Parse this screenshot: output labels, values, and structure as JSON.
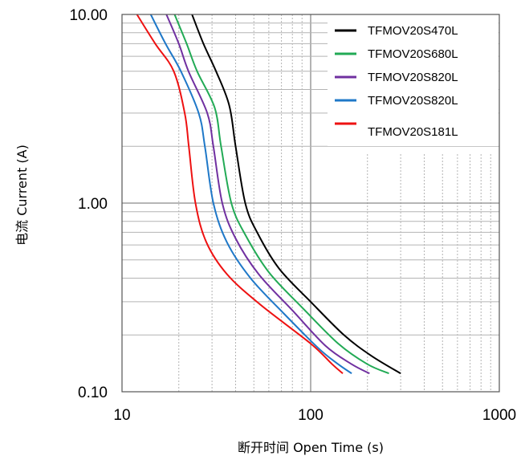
{
  "chart_data": {
    "type": "line",
    "xlabel": "断开时间 Open Time (s)",
    "ylabel": "电流 Current (A)",
    "x_scale": "log",
    "y_scale": "log",
    "xlim": [
      10,
      1000
    ],
    "ylim": [
      0.1,
      10
    ],
    "x_ticks": [
      "10",
      "100",
      "1000"
    ],
    "y_ticks": [
      "0.10",
      "1.00",
      "10.00"
    ],
    "grid": true,
    "legend_position": "top-right",
    "series": [
      {
        "name": "TFMOV20S470L",
        "color": "#000000",
        "points": [
          [
            23.5,
            10
          ],
          [
            27,
            7
          ],
          [
            31.5,
            5
          ],
          [
            37,
            3.3
          ],
          [
            40,
            2
          ],
          [
            45,
            1
          ],
          [
            52,
            0.7
          ],
          [
            68,
            0.45
          ],
          [
            100,
            0.3
          ],
          [
            150,
            0.2
          ],
          [
            210,
            0.155
          ],
          [
            300,
            0.125
          ]
        ]
      },
      {
        "name": "TFMOV20S680L",
        "color": "#22aa55",
        "points": [
          [
            19,
            10
          ],
          [
            22,
            7
          ],
          [
            25,
            5
          ],
          [
            31,
            3.2
          ],
          [
            33.5,
            2
          ],
          [
            38,
            1
          ],
          [
            45,
            0.68
          ],
          [
            60,
            0.43
          ],
          [
            90,
            0.28
          ],
          [
            140,
            0.18
          ],
          [
            200,
            0.14
          ],
          [
            260,
            0.125
          ]
        ]
      },
      {
        "name": "TFMOV20S820L",
        "color": "#7030a0",
        "points": [
          [
            17.2,
            10
          ],
          [
            20,
            7
          ],
          [
            22.5,
            5
          ],
          [
            28.3,
            3
          ],
          [
            30.5,
            2
          ],
          [
            34,
            1
          ],
          [
            40,
            0.65
          ],
          [
            53,
            0.42
          ],
          [
            80,
            0.27
          ],
          [
            120,
            0.175
          ],
          [
            165,
            0.14
          ],
          [
            205,
            0.125
          ]
        ]
      },
      {
        "name": "TFMOV20S820L",
        "color": "#1f78c8",
        "points": [
          [
            14.2,
            10
          ],
          [
            17,
            7
          ],
          [
            20.5,
            5
          ],
          [
            25.5,
            3
          ],
          [
            27.5,
            2
          ],
          [
            30.5,
            1
          ],
          [
            36,
            0.62
          ],
          [
            48,
            0.4
          ],
          [
            72,
            0.26
          ],
          [
            110,
            0.17
          ],
          [
            140,
            0.14
          ],
          [
            165,
            0.125
          ]
        ]
      },
      {
        "name": "TFMOV20S181L",
        "color": "#ee1111",
        "points": [
          [
            12,
            10
          ],
          [
            15,
            7
          ],
          [
            18.8,
            5
          ],
          [
            21.5,
            3
          ],
          [
            22.6,
            2
          ],
          [
            24.5,
            1
          ],
          [
            28,
            0.62
          ],
          [
            36,
            0.42
          ],
          [
            54,
            0.29
          ],
          [
            100,
            0.18
          ],
          [
            130,
            0.14
          ],
          [
            148,
            0.125
          ]
        ]
      }
    ]
  }
}
